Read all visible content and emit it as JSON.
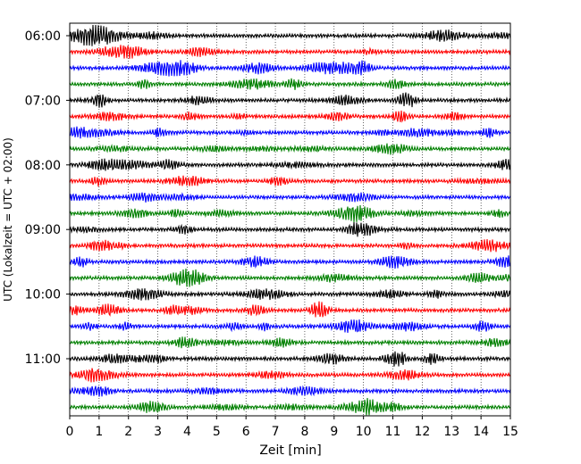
{
  "chart_data": {
    "type": "line",
    "title": "",
    "xlabel": "Zeit  [min]",
    "ylabel": "UTC (Lokalzeit = UTC + 02:00)",
    "xlim": [
      0,
      15
    ],
    "x_ticks": [
      "0",
      "1",
      "2",
      "3",
      "4",
      "5",
      "6",
      "7",
      "8",
      "9",
      "10",
      "11",
      "12",
      "13",
      "14",
      "15"
    ],
    "y_tick_labels": [
      "06:00",
      "07:00",
      "08:00",
      "09:00",
      "10:00",
      "11:00"
    ],
    "grid": {
      "x": "dotted",
      "y": "none"
    },
    "trace_interval_minutes": 15,
    "trace_start": "06:00",
    "trace_count": 24,
    "trace_colors": [
      "#000000",
      "#ff0000",
      "#0000ff",
      "#008000"
    ]
  }
}
